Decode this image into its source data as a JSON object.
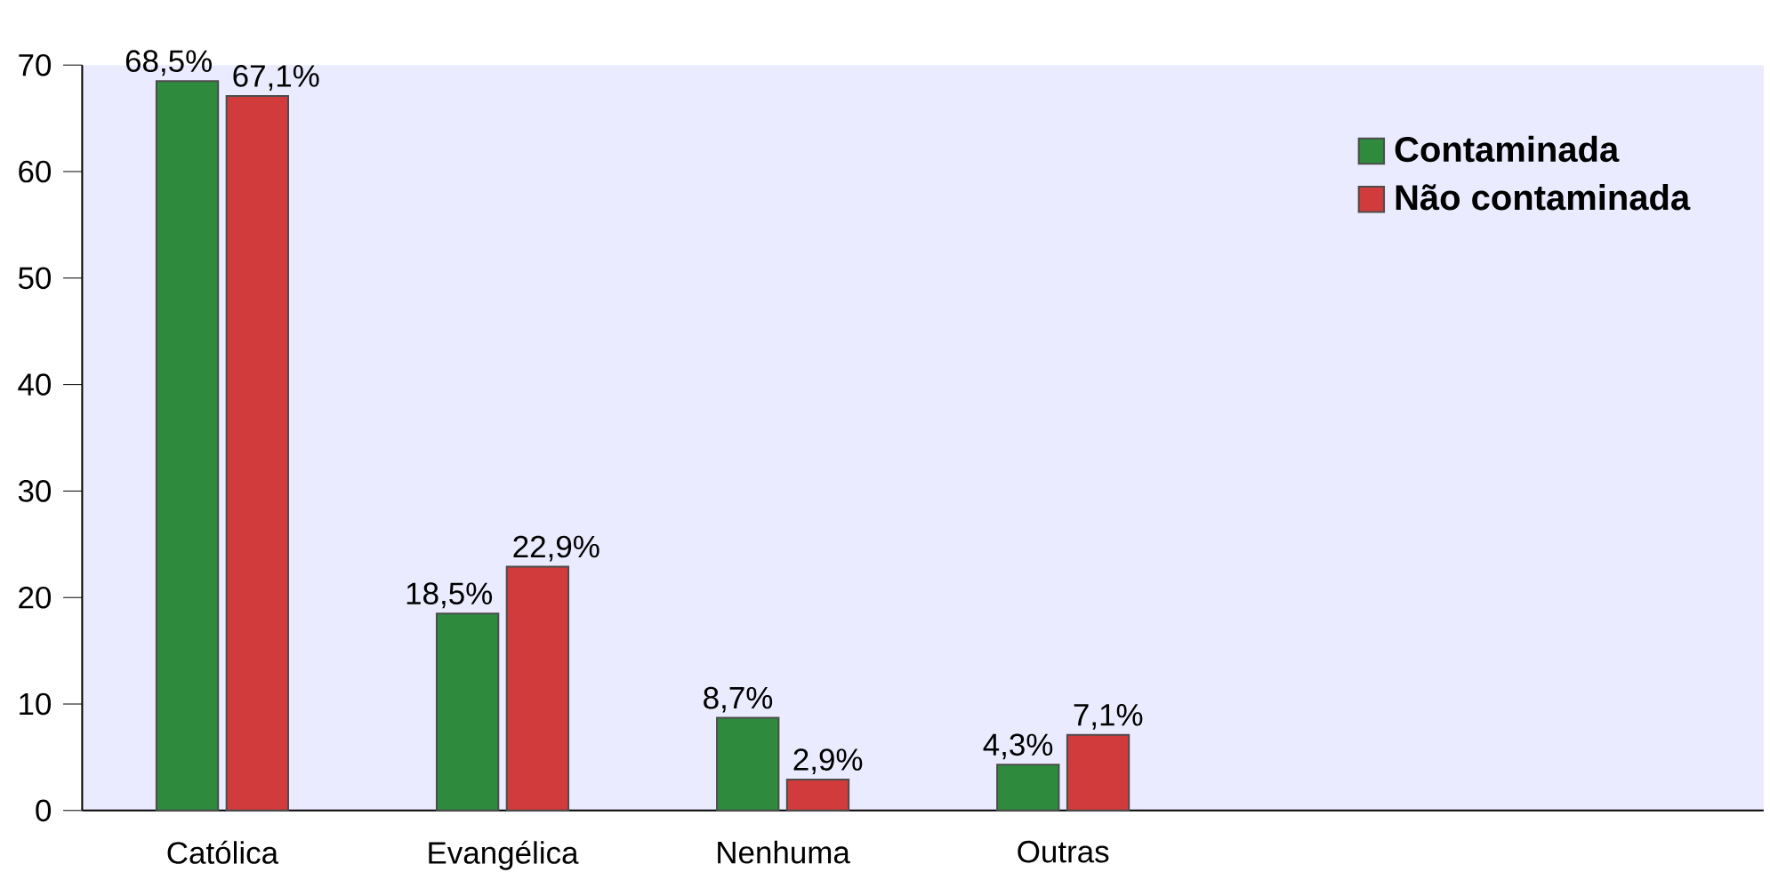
{
  "chart_data": {
    "type": "bar",
    "categories": [
      "Católica",
      "Evangélica",
      "Nenhuma",
      "Outras",
      null,
      null
    ],
    "series": [
      {
        "name": "Contaminada",
        "color": "#2e8b3e",
        "values": [
          68.5,
          18.5,
          8.7,
          4.3,
          null,
          null
        ],
        "value_labels": [
          "68,5%",
          "18,5%",
          "8,7%",
          "4,3%",
          null,
          null
        ]
      },
      {
        "name": "Não contaminada",
        "color": "#d23b3b",
        "values": [
          67.1,
          22.9,
          2.9,
          7.1,
          null,
          null
        ],
        "value_labels": [
          "67,1%",
          "22,9%",
          "2,9%",
          "7,1%",
          null,
          null
        ]
      }
    ],
    "ylim": [
      0,
      70
    ],
    "yticks": [
      0,
      10,
      20,
      30,
      40,
      50,
      60,
      70
    ],
    "legend": "top right",
    "grid": false
  }
}
